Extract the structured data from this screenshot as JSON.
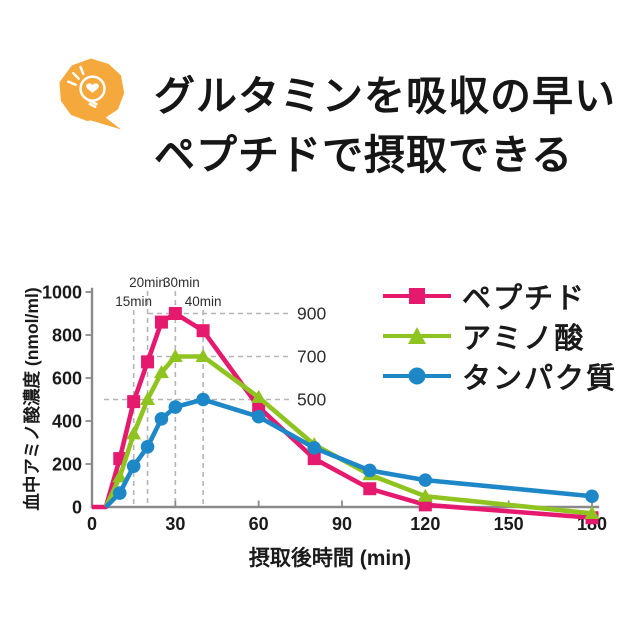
{
  "header": {
    "title_line1": "グルタミンを吸収の早い",
    "title_line2": "ペプチドで摂取できる",
    "badge_color": "#F5A83B"
  },
  "chart_data": {
    "type": "line",
    "title": "",
    "xlabel": "摂取後時間 (min)",
    "ylabel": "血中アミノ酸濃度 (nmol/ml)",
    "xlim": [
      0,
      180
    ],
    "ylim": [
      0,
      1000
    ],
    "x_ticks": [
      0,
      30,
      60,
      90,
      120,
      150,
      180
    ],
    "y_ticks": [
      0,
      200,
      400,
      600,
      800,
      1000
    ],
    "grid": false,
    "legend_position": "right",
    "axis_color": "#8a8a8a",
    "guide_color": "#b5b5b5",
    "text_color": "#1a1a1a",
    "x": [
      0,
      5,
      10,
      15,
      20,
      25,
      30,
      40,
      60,
      80,
      100,
      120,
      180
    ],
    "series": [
      {
        "id": "peptide",
        "name": "ペプチド",
        "color": "#E5196E",
        "marker": "square",
        "values": [
          0,
          0,
          225,
          490,
          675,
          860,
          900,
          820,
          465,
          225,
          85,
          10,
          -50
        ]
      },
      {
        "id": "amino-acid",
        "name": "アミノ酸",
        "color": "#8FC31F",
        "marker": "triangle",
        "values": [
          null,
          0,
          140,
          340,
          500,
          625,
          700,
          700,
          510,
          290,
          150,
          50,
          -30
        ]
      },
      {
        "id": "protein",
        "name": "タンパク質",
        "color": "#1E87C7",
        "marker": "circle",
        "values": [
          null,
          0,
          65,
          190,
          280,
          410,
          465,
          500,
          420,
          275,
          170,
          125,
          50
        ]
      }
    ],
    "annotations": {
      "time_labels": [
        {
          "text": "15min",
          "x": 15,
          "row": "low"
        },
        {
          "text": "20min",
          "x": 20,
          "row": "high"
        },
        {
          "text": "30min",
          "x": 30,
          "row": "high"
        },
        {
          "text": "40min",
          "x": 40,
          "row": "low"
        }
      ],
      "value_labels": [
        {
          "text": "900",
          "value": 900
        },
        {
          "text": "700",
          "value": 700
        },
        {
          "text": "500",
          "value": 500
        }
      ]
    }
  }
}
